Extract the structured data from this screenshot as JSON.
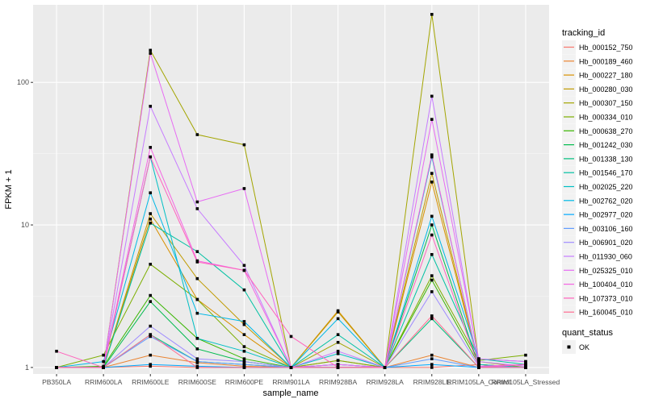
{
  "chart_data": {
    "type": "line",
    "xlabel": "sample_name",
    "ylabel": "FPKM + 1",
    "y_scale": "log10",
    "ylim": [
      0.9,
      350
    ],
    "y_ticks": [
      1,
      10,
      100
    ],
    "y_tick_labels": [
      "1",
      "10",
      "100"
    ],
    "grid": true,
    "legend_position": "right",
    "categories": [
      "PB350LA",
      "RRIM600LA",
      "RRIM600LE",
      "RRIM600SE",
      "RRIM600PE",
      "RRIM901LA",
      "RRIM928BA",
      "RRIM928LA",
      "RRIM928LE",
      "RRIM105LA_Control",
      "RRIM105LA_Stressed"
    ],
    "legend_title": "tracking_id",
    "series": [
      {
        "name": "Hb_000152_750",
        "color": "#F8766D",
        "values": [
          1.0,
          1.0,
          1.02,
          1.0,
          1.0,
          1.0,
          1.0,
          1.0,
          1.0,
          1.05,
          1.0
        ]
      },
      {
        "name": "Hb_000189_460",
        "color": "#EA8331",
        "values": [
          1.0,
          1.0,
          1.22,
          1.08,
          1.02,
          1.0,
          1.12,
          1.0,
          1.22,
          1.0,
          1.0
        ]
      },
      {
        "name": "Hb_000227_180",
        "color": "#D89000",
        "values": [
          1.0,
          1.0,
          11.0,
          3.0,
          1.7,
          1.0,
          2.5,
          1.0,
          20.0,
          1.05,
          1.0
        ]
      },
      {
        "name": "Hb_000280_030",
        "color": "#C09B00",
        "values": [
          1.0,
          1.0,
          12.0,
          4.2,
          2.0,
          1.0,
          2.45,
          1.0,
          23.0,
          1.05,
          1.0
        ]
      },
      {
        "name": "Hb_000307_150",
        "color": "#A3A500",
        "values": [
          1.0,
          1.0,
          168.0,
          43.0,
          36.5,
          1.0,
          1.5,
          1.0,
          300.0,
          1.1,
          1.0
        ]
      },
      {
        "name": "Hb_000334_010",
        "color": "#7CAE00",
        "values": [
          1.0,
          1.22,
          5.3,
          3.0,
          1.4,
          1.0,
          1.12,
          1.0,
          4.4,
          1.12,
          1.22
        ]
      },
      {
        "name": "Hb_000638_270",
        "color": "#39B600",
        "values": [
          1.0,
          1.02,
          3.2,
          1.6,
          1.15,
          1.0,
          1.05,
          1.0,
          4.1,
          1.05,
          1.0
        ]
      },
      {
        "name": "Hb_001242_030",
        "color": "#00BB4E",
        "values": [
          1.0,
          1.0,
          2.9,
          1.35,
          1.1,
          1.0,
          1.0,
          1.0,
          10.0,
          1.02,
          1.0
        ]
      },
      {
        "name": "Hb_001338_130",
        "color": "#00BF7D",
        "values": [
          1.0,
          1.0,
          1.7,
          1.1,
          1.05,
          1.0,
          1.0,
          1.0,
          2.2,
          1.0,
          1.0
        ]
      },
      {
        "name": "Hb_001546_170",
        "color": "#00C1A3",
        "values": [
          1.0,
          1.0,
          10.3,
          6.5,
          3.5,
          1.0,
          1.7,
          1.0,
          6.2,
          1.15,
          1.05
        ]
      },
      {
        "name": "Hb_002025_220",
        "color": "#00BFC4",
        "values": [
          1.0,
          1.0,
          30.0,
          1.6,
          1.3,
          1.0,
          1.25,
          1.0,
          30.0,
          1.05,
          1.0
        ]
      },
      {
        "name": "Hb_002762_020",
        "color": "#00B8E5",
        "values": [
          1.0,
          1.1,
          16.8,
          2.4,
          2.1,
          1.0,
          2.2,
          1.0,
          11.5,
          1.15,
          1.1
        ]
      },
      {
        "name": "Hb_002977_020",
        "color": "#00A9FF",
        "values": [
          1.0,
          1.0,
          1.05,
          1.02,
          1.0,
          1.0,
          1.0,
          1.0,
          1.05,
          1.0,
          1.0
        ]
      },
      {
        "name": "Hb_003106_160",
        "color": "#619CFF",
        "values": [
          1.0,
          1.0,
          1.65,
          1.1,
          1.05,
          1.0,
          1.05,
          1.0,
          1.15,
          1.0,
          1.05
        ]
      },
      {
        "name": "Hb_006901_020",
        "color": "#9F8CFF",
        "values": [
          1.0,
          1.0,
          1.95,
          1.15,
          1.1,
          1.0,
          1.05,
          1.0,
          3.4,
          1.02,
          1.0
        ]
      },
      {
        "name": "Hb_011930_060",
        "color": "#C77CFF",
        "values": [
          1.0,
          1.0,
          68.0,
          13.0,
          5.2,
          1.0,
          1.3,
          1.0,
          80.0,
          1.1,
          1.02
        ]
      },
      {
        "name": "Hb_025325_010",
        "color": "#E76BF3",
        "values": [
          1.0,
          1.0,
          160.0,
          14.5,
          18.0,
          1.0,
          1.05,
          1.0,
          55.0,
          1.15,
          1.1
        ]
      },
      {
        "name": "Hb_100404_010",
        "color": "#F564E3",
        "values": [
          1.0,
          1.0,
          35.0,
          5.6,
          4.8,
          1.0,
          1.0,
          1.0,
          31.0,
          1.02,
          1.05
        ]
      },
      {
        "name": "Hb_107373_010",
        "color": "#FF62BC",
        "values": [
          1.3,
          1.0,
          30.0,
          5.5,
          4.8,
          1.65,
          1.0,
          1.0,
          8.5,
          1.0,
          1.05
        ]
      },
      {
        "name": "Hb_160045_010",
        "color": "#FF6C91",
        "values": [
          1.0,
          1.0,
          1.7,
          1.0,
          1.0,
          1.0,
          1.0,
          1.0,
          2.3,
          1.0,
          1.0
        ]
      }
    ],
    "shape_legend": {
      "title": "quant_status",
      "items": [
        "OK"
      ]
    }
  }
}
